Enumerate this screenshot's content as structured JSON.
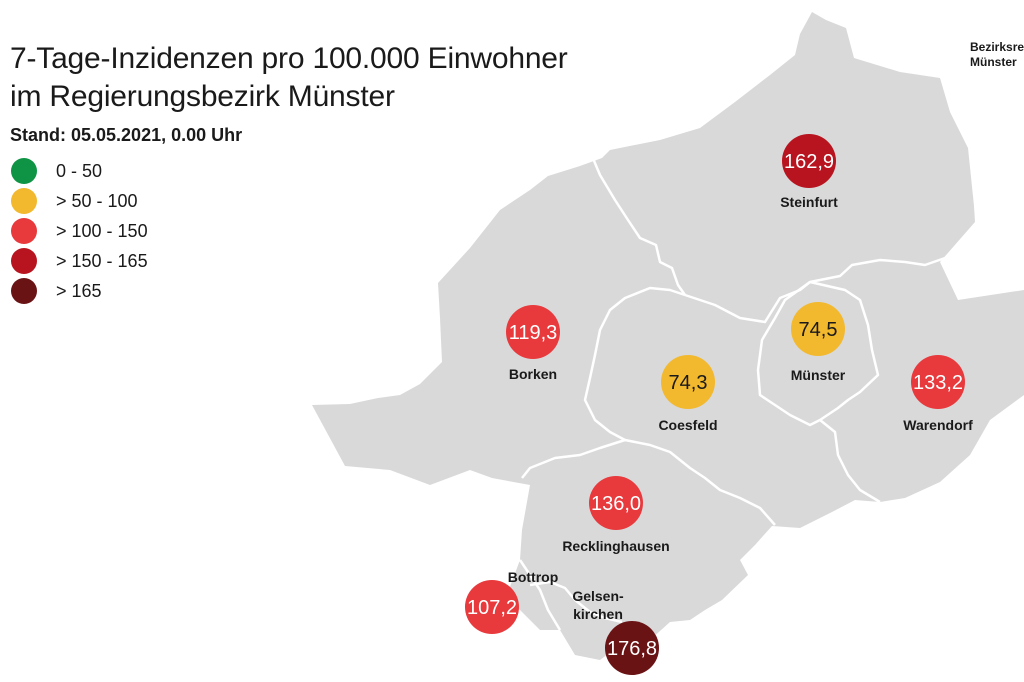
{
  "header": {
    "title_line1": "7-Tage-Inzidenzen pro 100.000 Einwohner",
    "title_line2": "im Regierungsbezirk Münster",
    "stand": "Stand: 05.05.2021, 0.00 Uhr"
  },
  "logo": {
    "line1": "Bezirksre",
    "line2": "Münster"
  },
  "legend": [
    {
      "label": "0 - 50",
      "color": "#0e9444"
    },
    {
      "label": "> 50 - 100",
      "color": "#f2b82e"
    },
    {
      "label": "> 100 - 150",
      "color": "#e8393d"
    },
    {
      "label": "> 150 - 165",
      "color": "#b8141f"
    },
    {
      "label": "> 165",
      "color": "#6a1315"
    }
  ],
  "districts": [
    {
      "name": "Steinfurt",
      "value": "162,9",
      "color": "#b8141f",
      "text_color": "#ffffff"
    },
    {
      "name": "Borken",
      "value": "119,3",
      "color": "#e8393d",
      "text_color": "#ffffff"
    },
    {
      "name": "Münster",
      "value": "74,5",
      "color": "#f2b82e",
      "text_color": "#1a1a1a"
    },
    {
      "name": "Coesfeld",
      "value": "74,3",
      "color": "#f2b82e",
      "text_color": "#1a1a1a"
    },
    {
      "name": "Warendorf",
      "value": "133,2",
      "color": "#e8393d",
      "text_color": "#ffffff"
    },
    {
      "name": "Recklinghausen",
      "value": "136,0",
      "color": "#e8393d",
      "text_color": "#ffffff"
    },
    {
      "name": "Bottrop",
      "value": "107,2",
      "color": "#e8393d",
      "text_color": "#ffffff"
    },
    {
      "name_line1": "Gelsen-",
      "name_line2": "kirchen",
      "value": "176,8",
      "color": "#6a1315",
      "text_color": "#ffffff"
    }
  ],
  "colors": {
    "land": "#d9d9d9",
    "border": "#ffffff",
    "background": "#ffffff"
  }
}
